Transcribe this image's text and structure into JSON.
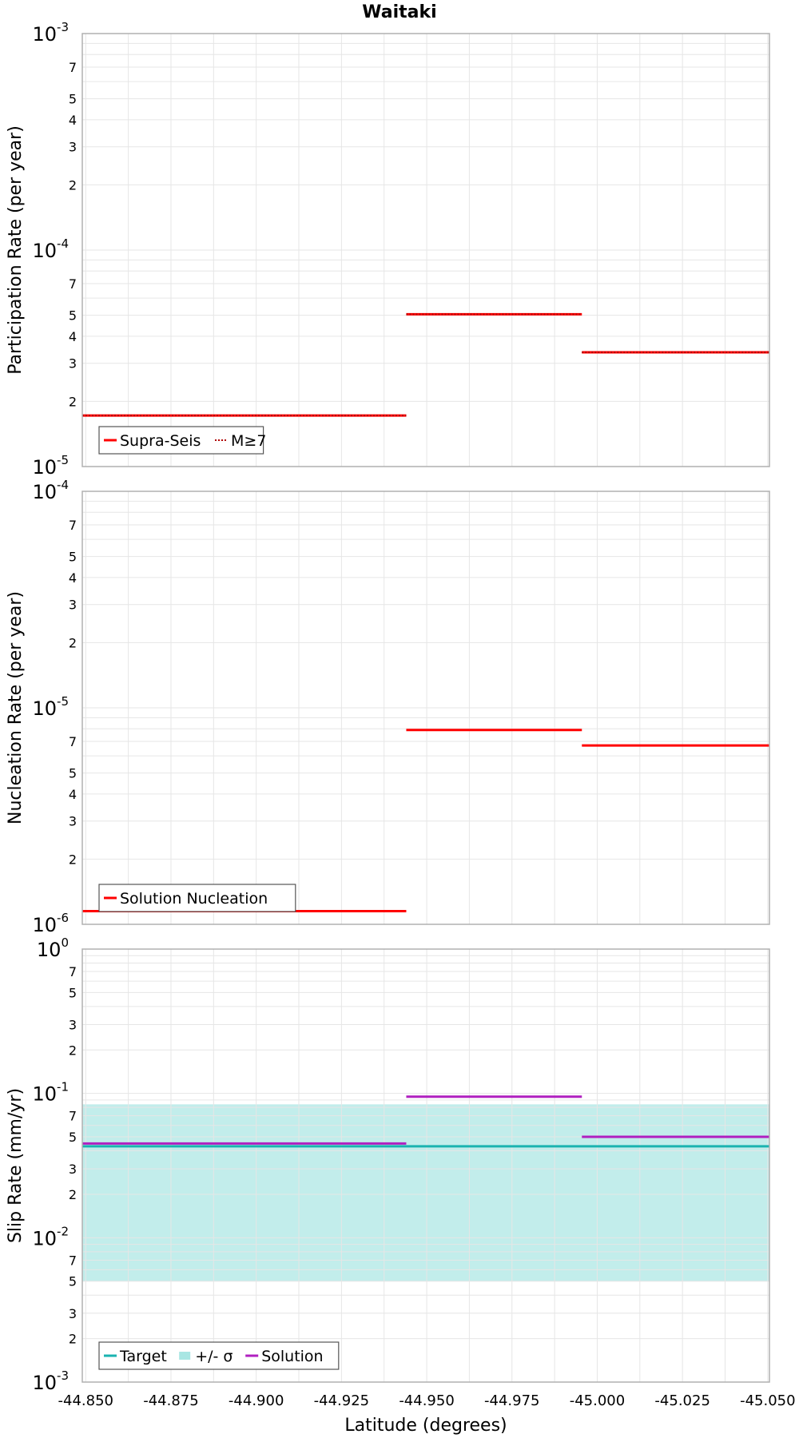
{
  "title": "Waitaki",
  "xlabel": "Latitude (degrees)",
  "x_ticks": [
    "-44.850",
    "-44.875",
    "-44.900",
    "-44.925",
    "-44.950",
    "-44.975",
    "-45.000",
    "-45.025",
    "-45.050"
  ],
  "chart_data": [
    {
      "type": "line",
      "ylabel": "Participation Rate (per year)",
      "yscale": "log",
      "ylim": [
        1e-05,
        0.001
      ],
      "xlim": [
        -44.849,
        -45.0505
      ],
      "grid": true,
      "legend_position": "bottom-left",
      "y_tick_major": [
        {
          "base": "10",
          "exp": "-3"
        },
        {
          "base": "10",
          "exp": "-4"
        },
        {
          "base": "10",
          "exp": "-5"
        }
      ],
      "y_tick_minor": [
        "7",
        "5",
        "4",
        "3",
        "2"
      ],
      "series": [
        {
          "name": "Supra-Seis",
          "style": "solid",
          "color": "#ff0000",
          "segments": [
            [
              -44.849,
              -44.944,
              1.72e-05
            ],
            [
              -44.944,
              -44.9955,
              5.05e-05
            ],
            [
              -44.9955,
              -45.0505,
              3.37e-05
            ]
          ]
        },
        {
          "name": "M≥7",
          "style": "dotted",
          "color": "#ff0000",
          "segments": [
            [
              -44.849,
              -44.944,
              1.72e-05
            ],
            [
              -44.944,
              -44.9955,
              5.05e-05
            ],
            [
              -44.9955,
              -45.0505,
              3.37e-05
            ]
          ]
        }
      ]
    },
    {
      "type": "line",
      "ylabel": "Nucleation Rate (per year)",
      "yscale": "log",
      "ylim": [
        1e-06,
        0.0001
      ],
      "xlim": [
        -44.849,
        -45.0505
      ],
      "grid": true,
      "legend_position": "bottom-left",
      "y_tick_major": [
        {
          "base": "10",
          "exp": "-4"
        },
        {
          "base": "10",
          "exp": "-5"
        },
        {
          "base": "10",
          "exp": "-6"
        }
      ],
      "y_tick_minor": [
        "7",
        "5",
        "4",
        "3",
        "2"
      ],
      "series": [
        {
          "name": "Solution Nucleation",
          "style": "solid",
          "color": "#ff0000",
          "segments": [
            [
              -44.849,
              -44.944,
              1.15e-06
            ],
            [
              -44.944,
              -44.9955,
              7.9e-06
            ],
            [
              -44.9955,
              -45.0505,
              6.7e-06
            ]
          ]
        }
      ]
    },
    {
      "type": "line",
      "ylabel": "Slip Rate (mm/yr)",
      "yscale": "log",
      "ylim": [
        0.001,
        1
      ],
      "xlim": [
        -44.849,
        -45.0505
      ],
      "grid": true,
      "legend_position": "bottom-left",
      "y_tick_major": [
        {
          "base": "10",
          "exp": "0"
        },
        {
          "base": "10",
          "exp": "-1"
        },
        {
          "base": "10",
          "exp": "-2"
        },
        {
          "base": "10",
          "exp": "-3"
        }
      ],
      "y_tick_minor": [
        "7",
        "5",
        "3",
        "2"
      ],
      "band": {
        "name": "+/- σ",
        "color": "#a8e6e3",
        "x": [
          -44.849,
          -45.0505
        ],
        "y": [
          0.005,
          0.084
        ]
      },
      "series": [
        {
          "name": "Target",
          "style": "solid",
          "color": "#1ab3b0",
          "segments": [
            [
              -44.849,
              -45.0505,
              0.043
            ]
          ]
        },
        {
          "name": "Solution",
          "style": "solid",
          "color": "#b020c0",
          "segments": [
            [
              -44.849,
              -44.944,
              0.045
            ],
            [
              -44.944,
              -44.9955,
              0.095
            ],
            [
              -44.9955,
              -45.0505,
              0.05
            ]
          ]
        }
      ]
    }
  ]
}
